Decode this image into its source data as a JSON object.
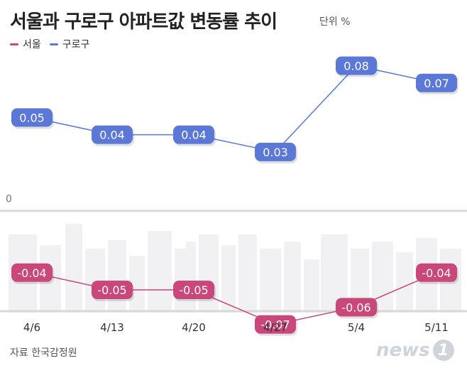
{
  "header": {
    "title": "서울과 구로구 아파트값 변동률 추이",
    "unit": "단위 %"
  },
  "footer": {
    "source": "자료  한국감정원",
    "logo_text": "news",
    "logo_badge": "1"
  },
  "chart_data": {
    "type": "line",
    "categories": [
      "4/6",
      "4/13",
      "4/20",
      "4/27",
      "5/4",
      "5/11"
    ],
    "series": [
      {
        "name": "서울",
        "color": "#c9477a",
        "values": [
          -0.04,
          -0.05,
          -0.05,
          -0.07,
          -0.06,
          -0.04
        ],
        "labels": [
          "-0.04",
          "-0.05",
          "-0.05",
          "-0.07",
          "-0.06",
          "-0.04"
        ]
      },
      {
        "name": "구로구",
        "color": "#5b78d6",
        "values": [
          0.05,
          0.04,
          0.04,
          0.03,
          0.08,
          0.07
        ],
        "labels": [
          "0.05",
          "0.04",
          "0.04",
          "0.03",
          "0.08",
          "0.07"
        ]
      }
    ],
    "zero_label": "0",
    "ylim": [
      -0.085,
      0.1
    ],
    "grid": false,
    "legend_placement": "top-left"
  }
}
